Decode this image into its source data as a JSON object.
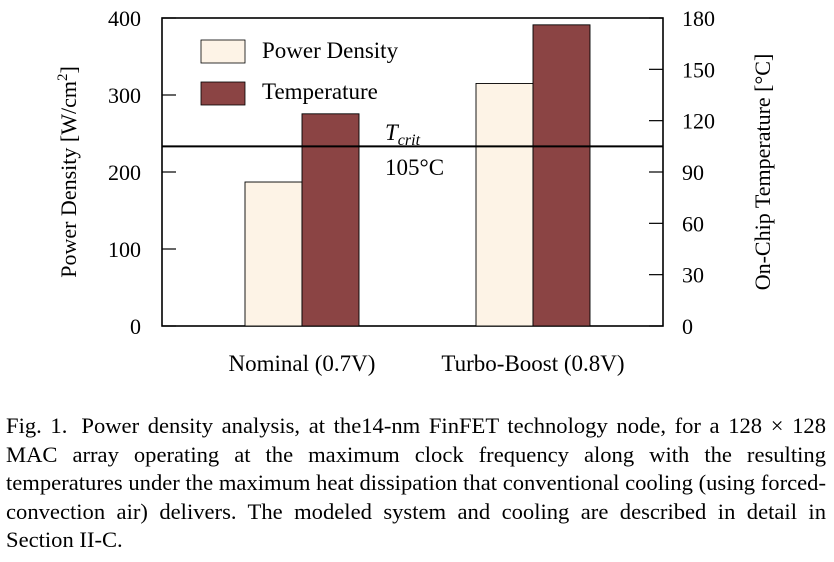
{
  "chart_data": {
    "type": "bar",
    "categories": [
      "Nominal (0.7V)",
      "Turbo-Boost (0.8V)"
    ],
    "series": [
      {
        "name": "Power Density",
        "axis": "left",
        "color": "#fdf3e6",
        "values": [
          187,
          315
        ]
      },
      {
        "name": "Temperature",
        "axis": "right",
        "color": "#8b4444",
        "values": [
          124,
          176
        ]
      }
    ],
    "y_left": {
      "label_main": "Power Density [W/cm",
      "label_sup": "2",
      "label_end": "]",
      "range": [
        0,
        400
      ],
      "ticks": [
        "0",
        "100",
        "200",
        "300",
        "400"
      ]
    },
    "y_right": {
      "label": "On-Chip Temperature [°C]",
      "range": [
        0,
        180
      ],
      "ticks": [
        "0",
        "30",
        "60",
        "90",
        "120",
        "150",
        "180"
      ]
    },
    "threshold": {
      "value": 105,
      "axis": "right",
      "label_symbol": "T",
      "label_sub": "crit",
      "label_value": "105°C"
    },
    "legend_position": "top-left",
    "grid": false
  },
  "caption": {
    "label": "Fig. 1.",
    "text": "Power density analysis, at the14-nm FinFET technology node, for a 128 × 128 MAC array operating at the maximum clock frequency along with the resulting temperatures under the maximum heat dissipation that conventional cooling (using forced-convection air) delivers. The modeled system and cooling are described in detail in Section II-C."
  }
}
